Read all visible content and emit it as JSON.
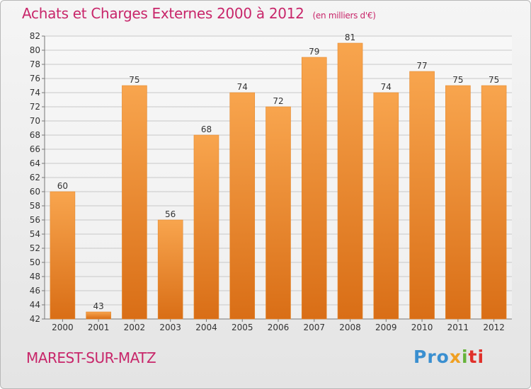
{
  "header": {
    "title": "Achats et Charges Externes 2000 à 2012",
    "unit": "(en milliers d'€)"
  },
  "footer": {
    "place": "MAREST-SUR-MATZ",
    "logo": [
      "Pro",
      "x",
      "i",
      "ti"
    ]
  },
  "colors": {
    "title": "#c8266a",
    "bar_top": "#f8a54e",
    "bar_bottom": "#d96e16",
    "grid": "#c8c8c8"
  },
  "chart_data": {
    "type": "bar",
    "title": "Achats et Charges Externes 2000 à 2012",
    "xlabel": "",
    "ylabel": "",
    "categories": [
      "2000",
      "2001",
      "2002",
      "2003",
      "2004",
      "2005",
      "2006",
      "2007",
      "2008",
      "2009",
      "2010",
      "2011",
      "2012"
    ],
    "values": [
      60,
      43,
      75,
      56,
      68,
      74,
      72,
      79,
      81,
      74,
      77,
      75,
      75
    ],
    "ylim": [
      42,
      82
    ],
    "yticks": [
      42,
      44,
      46,
      48,
      50,
      52,
      54,
      56,
      58,
      60,
      62,
      64,
      66,
      68,
      70,
      72,
      74,
      76,
      78,
      80,
      82
    ],
    "grid": true,
    "legend": "none"
  }
}
